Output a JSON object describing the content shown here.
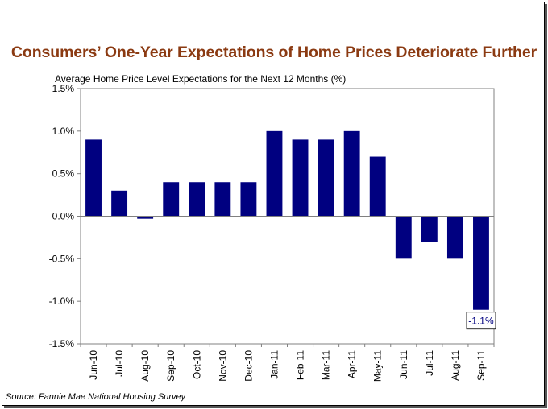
{
  "title": "Consumers’ One-Year Expectations of Home Prices Deteriorate Further",
  "source": "Source: Fannie Mae National Housing Survey",
  "colors": {
    "title": "#8B3A12",
    "bar": "#000080",
    "callout": "#000080"
  },
  "chart_data": {
    "type": "bar",
    "title": "Average Home Price Level Expectations for the Next 12 Months (%)",
    "xlabel": "",
    "ylabel": "",
    "ylim": [
      -1.5,
      1.5
    ],
    "yticks": [
      {
        "value": 1.5,
        "label": "1.5%"
      },
      {
        "value": 1.0,
        "label": "1.0%"
      },
      {
        "value": 0.5,
        "label": "0.5%"
      },
      {
        "value": 0.0,
        "label": "0.0%"
      },
      {
        "value": -0.5,
        "label": "-0.5%"
      },
      {
        "value": -1.0,
        "label": "-1.0%"
      },
      {
        "value": -1.5,
        "label": "-1.5%"
      }
    ],
    "grid": false,
    "categories": [
      "Jun-10",
      "Jul-10",
      "Aug-10",
      "Sep-10",
      "Oct-10",
      "Nov-10",
      "Dec-10",
      "Jan-11",
      "Feb-11",
      "Mar-11",
      "Apr-11",
      "May-11",
      "Jun-11",
      "Jul-11",
      "Aug-11",
      "Sep-11"
    ],
    "values": [
      0.9,
      0.3,
      -0.03,
      0.4,
      0.4,
      0.4,
      0.4,
      1.0,
      0.9,
      0.9,
      1.0,
      0.7,
      -0.5,
      -0.3,
      -0.5,
      -1.1
    ],
    "annotations": [
      {
        "category": "Sep-11",
        "text": "-1.1%"
      }
    ]
  }
}
